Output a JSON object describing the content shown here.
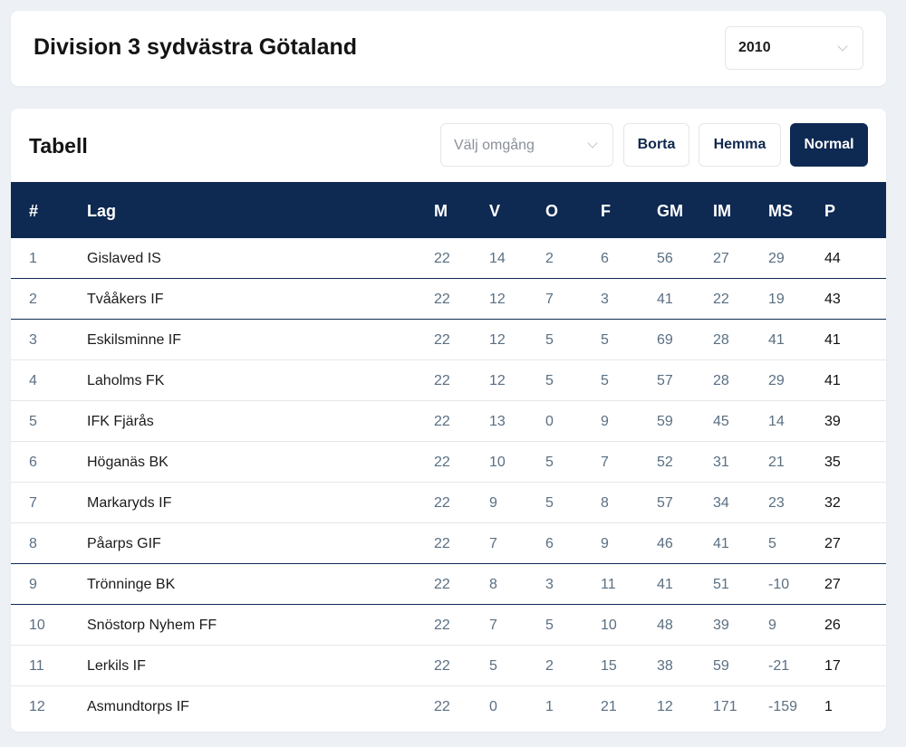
{
  "header": {
    "title": "Division 3 sydvästra Götaland",
    "season": "2010"
  },
  "table": {
    "title": "Tabell",
    "round_placeholder": "Välj omgång",
    "buttons": {
      "borta": "Borta",
      "hemma": "Hemma",
      "normal": "Normal"
    },
    "columns": {
      "pos": "#",
      "team": "Lag",
      "m": "M",
      "v": "V",
      "o": "O",
      "f": "F",
      "gm": "GM",
      "im": "IM",
      "ms": "MS",
      "p": "P"
    },
    "rows": [
      {
        "pos": "1",
        "team": "Gislaved IS",
        "m": "22",
        "v": "14",
        "o": "2",
        "f": "6",
        "gm": "56",
        "im": "27",
        "ms": "29",
        "p": "44"
      },
      {
        "pos": "2",
        "team": "Tvååkers IF",
        "m": "22",
        "v": "12",
        "o": "7",
        "f": "3",
        "gm": "41",
        "im": "22",
        "ms": "19",
        "p": "43"
      },
      {
        "pos": "3",
        "team": "Eskilsminne IF",
        "m": "22",
        "v": "12",
        "o": "5",
        "f": "5",
        "gm": "69",
        "im": "28",
        "ms": "41",
        "p": "41"
      },
      {
        "pos": "4",
        "team": "Laholms FK",
        "m": "22",
        "v": "12",
        "o": "5",
        "f": "5",
        "gm": "57",
        "im": "28",
        "ms": "29",
        "p": "41"
      },
      {
        "pos": "5",
        "team": "IFK Fjärås",
        "m": "22",
        "v": "13",
        "o": "0",
        "f": "9",
        "gm": "59",
        "im": "45",
        "ms": "14",
        "p": "39"
      },
      {
        "pos": "6",
        "team": "Höganäs BK",
        "m": "22",
        "v": "10",
        "o": "5",
        "f": "7",
        "gm": "52",
        "im": "31",
        "ms": "21",
        "p": "35"
      },
      {
        "pos": "7",
        "team": "Markaryds IF",
        "m": "22",
        "v": "9",
        "o": "5",
        "f": "8",
        "gm": "57",
        "im": "34",
        "ms": "23",
        "p": "32"
      },
      {
        "pos": "8",
        "team": "Påarps GIF",
        "m": "22",
        "v": "7",
        "o": "6",
        "f": "9",
        "gm": "46",
        "im": "41",
        "ms": "5",
        "p": "27"
      },
      {
        "pos": "9",
        "team": "Trönninge BK",
        "m": "22",
        "v": "8",
        "o": "3",
        "f": "11",
        "gm": "41",
        "im": "51",
        "ms": "-10",
        "p": "27"
      },
      {
        "pos": "10",
        "team": "Snöstorp Nyhem FF",
        "m": "22",
        "v": "7",
        "o": "5",
        "f": "10",
        "gm": "48",
        "im": "39",
        "ms": "9",
        "p": "26"
      },
      {
        "pos": "11",
        "team": "Lerkils IF",
        "m": "22",
        "v": "5",
        "o": "2",
        "f": "15",
        "gm": "38",
        "im": "59",
        "ms": "-21",
        "p": "17"
      },
      {
        "pos": "12",
        "team": "Asmundtorps IF",
        "m": "22",
        "v": "0",
        "o": "1",
        "f": "21",
        "gm": "12",
        "im": "171",
        "ms": "-159",
        "p": "1"
      }
    ]
  },
  "colors": {
    "navy": "#0e2952",
    "background": "#edf0f4",
    "card": "#ffffff",
    "muted_number": "#5a6f82"
  }
}
